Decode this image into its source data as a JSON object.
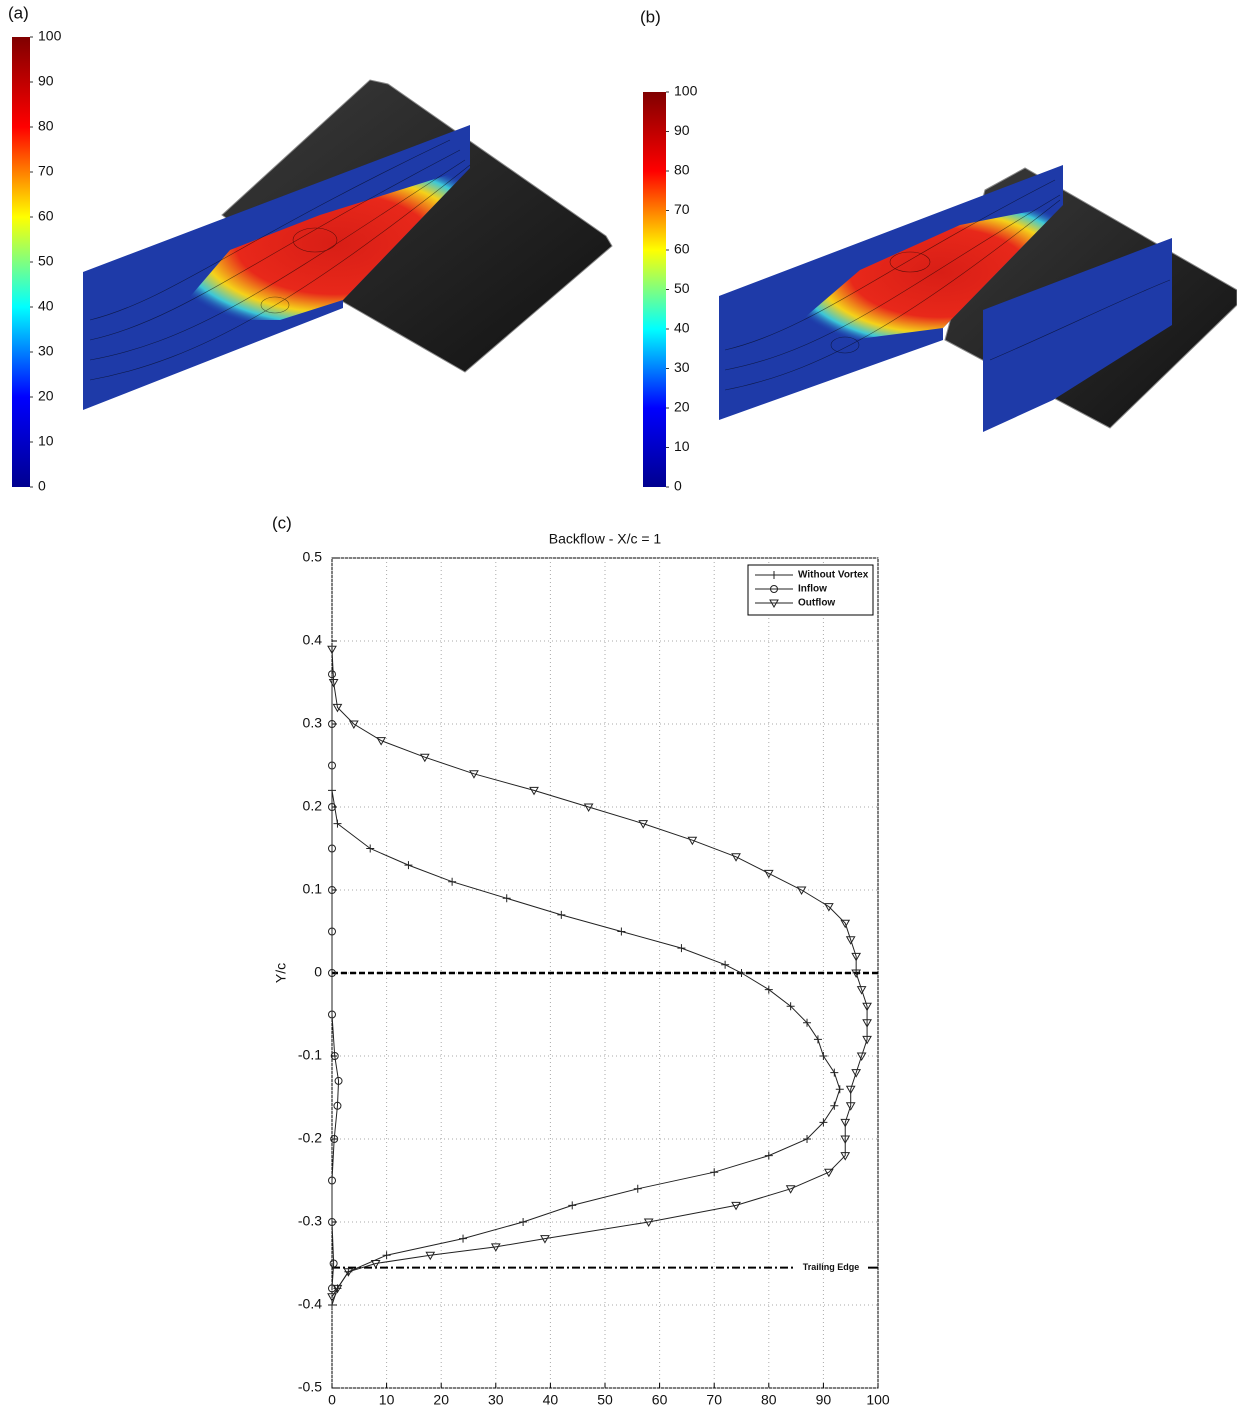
{
  "chart_data": [
    {
      "type": "colorbar",
      "label": "(a)",
      "colormap": "jet",
      "ylim": [
        0,
        100
      ],
      "yticks": [
        0,
        10,
        20,
        30,
        40,
        50,
        60,
        70,
        80,
        90,
        100
      ]
    },
    {
      "type": "colorbar",
      "label": "(b)",
      "colormap": "jet",
      "ylim": [
        0,
        100
      ],
      "yticks": [
        0,
        10,
        20,
        30,
        40,
        50,
        60,
        70,
        80,
        90,
        100
      ]
    },
    {
      "type": "line",
      "label": "(c)",
      "title": "Backflow - X/c = 1",
      "y_label": "Y/c",
      "xlim": [
        0,
        100
      ],
      "xticks": [
        0,
        10,
        20,
        30,
        40,
        50,
        60,
        70,
        80,
        90,
        100
      ],
      "ylim": [
        -0.5,
        0.5
      ],
      "yticks": [
        -0.5,
        -0.4,
        -0.3,
        -0.2,
        -0.1,
        0,
        0.1,
        0.2,
        0.3,
        0.4,
        0.5
      ],
      "grid": true,
      "legend": "upper right",
      "annotations": [
        {
          "text": "Trailing Edge",
          "y": -0.355
        }
      ],
      "series": [
        {
          "name": "Without Vortex",
          "marker": "+",
          "color": "#222",
          "y": [
            0.22,
            0.18,
            0.15,
            0.13,
            0.11,
            0.09,
            0.07,
            0.05,
            0.03,
            0.01,
            0,
            -0.02,
            -0.04,
            -0.06,
            -0.08,
            -0.1,
            -0.12,
            -0.14,
            -0.16,
            -0.18,
            -0.2,
            -0.22,
            -0.24,
            -0.26,
            -0.28,
            -0.3,
            -0.32,
            -0.34,
            -0.36,
            -0.38,
            -0.4
          ],
          "values": [
            0,
            1,
            7,
            14,
            22,
            32,
            42,
            53,
            64,
            72,
            75,
            80,
            84,
            87,
            89,
            90,
            92,
            93,
            92,
            90,
            87,
            80,
            70,
            56,
            44,
            35,
            24,
            10,
            3,
            1,
            0
          ]
        },
        {
          "name": "Inflow",
          "marker": "o",
          "color": "#222",
          "y": [
            0.36,
            0.3,
            0.25,
            0.2,
            0.15,
            0.1,
            0.05,
            0,
            -0.05,
            -0.1,
            -0.13,
            -0.16,
            -0.2,
            -0.25,
            -0.3,
            -0.35,
            -0.38
          ],
          "values": [
            0,
            0,
            0,
            0,
            0,
            0,
            0,
            0,
            0,
            0.5,
            1.2,
            1,
            0.4,
            0,
            0,
            0.3,
            0
          ]
        },
        {
          "name": "Outflow",
          "marker": "v",
          "color": "#222",
          "y": [
            0.39,
            0.35,
            0.32,
            0.3,
            0.28,
            0.26,
            0.24,
            0.22,
            0.2,
            0.18,
            0.16,
            0.14,
            0.12,
            0.1,
            0.08,
            0.06,
            0.04,
            0.02,
            0,
            -0.02,
            -0.04,
            -0.06,
            -0.08,
            -0.1,
            -0.12,
            -0.14,
            -0.16,
            -0.18,
            -0.2,
            -0.22,
            -0.24,
            -0.26,
            -0.28,
            -0.3,
            -0.32,
            -0.33,
            -0.34,
            -0.35,
            -0.36,
            -0.38,
            -0.39
          ],
          "values": [
            0,
            0.3,
            1,
            4,
            9,
            17,
            26,
            37,
            47,
            57,
            66,
            74,
            80,
            86,
            91,
            94,
            95,
            96,
            96,
            97,
            98,
            98,
            98,
            97,
            96,
            95,
            95,
            94,
            94,
            94,
            91,
            84,
            74,
            58,
            39,
            30,
            18,
            8,
            3,
            1,
            0
          ]
        }
      ]
    }
  ]
}
